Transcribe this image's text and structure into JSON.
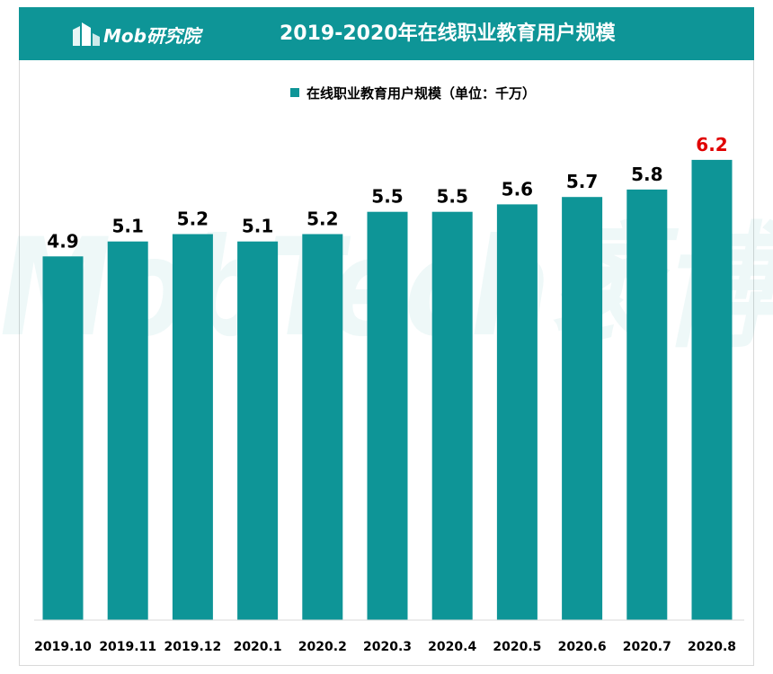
{
  "header": {
    "logo_text": "Mob研究院",
    "title": "2019-2020年在线职业教育用户规模"
  },
  "legend": {
    "label": "在线职业教育用户规模（单位：千万）"
  },
  "watermark": {
    "text": "MobTech袤博"
  },
  "colors": {
    "bar": "#0e9597",
    "highlight_label": "#e00000",
    "header_bg": "#0e9597"
  },
  "chart_data": {
    "type": "bar",
    "title": "2019-2020年在线职业教育用户规模",
    "categories": [
      "2019.10",
      "2019.11",
      "2019.12",
      "2020.1",
      "2020.2",
      "2020.3",
      "2020.4",
      "2020.5",
      "2020.6",
      "2020.7",
      "2020.8"
    ],
    "series": [
      {
        "name": "在线职业教育用户规模（单位：千万）",
        "values": [
          4.9,
          5.1,
          5.2,
          5.1,
          5.2,
          5.5,
          5.5,
          5.6,
          5.7,
          5.8,
          6.2
        ],
        "labels": [
          "4.9",
          "5.1",
          "5.2",
          "5.1",
          "5.2",
          "5.5",
          "5.5",
          "5.6",
          "5.7",
          "5.8",
          "6.2"
        ]
      }
    ],
    "highlight_index": 10,
    "ylim": [
      0,
      6.2
    ],
    "grid": false,
    "legend_position": "top-center"
  }
}
